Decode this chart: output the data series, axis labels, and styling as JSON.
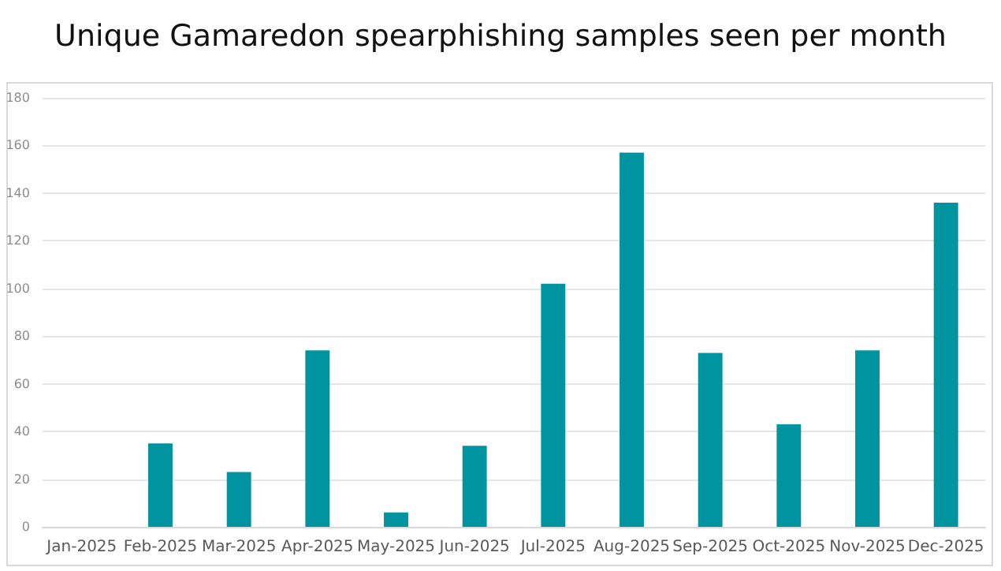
{
  "chart_data": {
    "type": "bar",
    "title": "Unique Gamaredon spearphishing samples seen per month",
    "categories": [
      "Jan-2025",
      "Feb-2025",
      "Mar-2025",
      "Apr-2025",
      "May-2025",
      "Jun-2025",
      "Jul-2025",
      "Aug-2025",
      "Sep-2025",
      "Oct-2025",
      "Nov-2025",
      "Dec-2025"
    ],
    "series": [
      {
        "color": "#0094a0",
        "values": [
          0,
          35,
          23,
          74,
          6,
          34,
          102,
          157,
          73,
          43,
          74,
          136
        ]
      }
    ],
    "ylim": [
      0,
      180
    ],
    "yticks": [
      0,
      20,
      40,
      60,
      80,
      100,
      120,
      140,
      160,
      180
    ],
    "grid": "y"
  }
}
